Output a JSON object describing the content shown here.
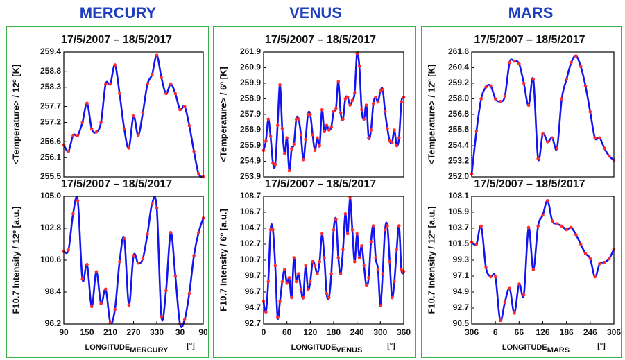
{
  "headers": [
    "MERCURY",
    "VENUS",
    "MARS"
  ],
  "chart_data": [
    {
      "type": "line",
      "title": "17/5/2007 – 18/5/2017",
      "ylabel": "<Temperature> / 12º [K]",
      "color": "#1414f0",
      "marker_color": "#ff2a2a",
      "x": [
        90,
        102,
        114,
        126,
        138,
        150,
        162,
        174,
        186,
        198,
        210,
        222,
        234,
        246,
        258,
        270,
        282,
        294,
        306,
        318,
        330,
        342,
        354,
        366,
        378,
        390,
        402,
        414,
        426,
        438,
        450
      ],
      "values": [
        256.5,
        256.3,
        256.8,
        256.8,
        257.2,
        257.8,
        257.0,
        256.9,
        257.2,
        258.4,
        258.4,
        259.0,
        258.1,
        257.0,
        256.4,
        257.4,
        256.8,
        257.5,
        258.4,
        258.7,
        259.3,
        258.6,
        258.1,
        258.4,
        258.1,
        257.6,
        257.7,
        257.1,
        256.3,
        255.6,
        255.5
      ],
      "xlim": [
        90,
        450
      ],
      "ylim": [
        255.5,
        259.4
      ],
      "yticks": [
        255.5,
        256.1,
        256.6,
        257.2,
        257.7,
        258.3,
        258.8,
        259.4
      ]
    },
    {
      "type": "line",
      "title": "17/5/2007 – 18/5/2017",
      "ylabel": "F10.7 Intensity / 12º [a.u.]",
      "color": "#1414f0",
      "marker_color": "#ff2a2a",
      "x": [
        90,
        102,
        114,
        126,
        138,
        150,
        162,
        174,
        186,
        198,
        210,
        222,
        234,
        246,
        258,
        270,
        282,
        294,
        306,
        318,
        330,
        342,
        354,
        366,
        378,
        390,
        402,
        414,
        426,
        438,
        450
      ],
      "values": [
        101.2,
        101.3,
        103.8,
        104.7,
        99.3,
        100.3,
        97.4,
        99.8,
        97.6,
        98.6,
        96.3,
        97.2,
        100.5,
        102.1,
        97.5,
        100.9,
        100.4,
        100.7,
        102.4,
        104.5,
        104.2,
        96.7,
        98.5,
        102.5,
        99.5,
        96.2,
        96.5,
        98.3,
        100.9,
        102.5,
        103.5
      ],
      "xlim": [
        90,
        450
      ],
      "ylim": [
        96.2,
        105
      ],
      "yticks": [
        96.2,
        98.4,
        100.6,
        102.8,
        {
          "value": 105,
          "label": "105.0"
        }
      ],
      "xticks": [
        90,
        150,
        210,
        270,
        330,
        {
          "value": 390,
          "label": "30"
        },
        {
          "value": 450,
          "label": "90"
        }
      ],
      "xlabel": "LONGITUDE",
      "xlabel_sub": "MERCURY",
      "xunit": "[°]"
    },
    {
      "type": "line",
      "title": "17/5/2007 – 18/5/2017",
      "ylabel": "<Temperature> / 6º [K]",
      "color": "#1414f0",
      "marker_color": "#ff2a2a",
      "x": [
        0,
        6,
        12,
        18,
        24,
        30,
        36,
        42,
        48,
        54,
        60,
        66,
        72,
        78,
        84,
        90,
        96,
        102,
        108,
        114,
        120,
        126,
        132,
        138,
        144,
        150,
        156,
        162,
        168,
        174,
        180,
        186,
        192,
        198,
        204,
        210,
        216,
        222,
        228,
        234,
        240,
        246,
        252,
        258,
        264,
        270,
        276,
        282,
        288,
        294,
        300,
        306,
        312,
        318,
        324,
        330,
        336,
        342,
        348,
        354,
        360
      ],
      "values": [
        255.6,
        256.2,
        257.6,
        256.5,
        254.8,
        254.7,
        257.2,
        259.8,
        257.0,
        255.4,
        256.4,
        254.3,
        255.7,
        256.0,
        257.6,
        257.6,
        256.6,
        255.0,
        256.3,
        257.9,
        257.9,
        256.6,
        255.6,
        256.4,
        255.9,
        258.2,
        256.8,
        257.2,
        256.9,
        257.1,
        258.1,
        258.3,
        260.0,
        258.0,
        257.6,
        258.9,
        259.0,
        258.5,
        258.8,
        259.3,
        261.8,
        261.0,
        258.2,
        257.6,
        258.5,
        256.4,
        256.9,
        258.6,
        259.0,
        258.7,
        259.4,
        259.5,
        258.1,
        257.0,
        256.2,
        256.1,
        256.9,
        255.9,
        256.4,
        258.7,
        259.0
      ],
      "xlim": [
        0,
        360
      ],
      "ylim": [
        253.9,
        261.9
      ],
      "yticks": [
        253.9,
        254.9,
        255.9,
        256.9,
        257.9,
        258.9,
        259.9,
        260.9,
        261.9
      ]
    },
    {
      "type": "line",
      "title": "17/5/2007 – 18/5/2017",
      "ylabel": "F10.7 Intensity / 6º [a.u.]",
      "color": "#1414f0",
      "marker_color": "#ff2a2a",
      "x": [
        0,
        6,
        12,
        18,
        24,
        30,
        36,
        42,
        48,
        54,
        60,
        66,
        72,
        78,
        84,
        90,
        96,
        102,
        108,
        114,
        120,
        126,
        132,
        138,
        144,
        150,
        156,
        162,
        168,
        174,
        180,
        186,
        192,
        198,
        204,
        210,
        216,
        222,
        228,
        234,
        240,
        246,
        252,
        258,
        264,
        270,
        276,
        282,
        288,
        294,
        300,
        306,
        312,
        318,
        324,
        330,
        336,
        342,
        348,
        354,
        360
      ],
      "values": [
        95.5,
        94.2,
        98.0,
        104.5,
        104.5,
        100.0,
        93.5,
        95.5,
        98.0,
        99.5,
        97.8,
        98.5,
        96.0,
        101.0,
        98.0,
        99.0,
        97.0,
        96.0,
        100.0,
        97.0,
        98.0,
        100.5,
        100.0,
        99.0,
        100.5,
        104.0,
        101.0,
        96.5,
        96.0,
        99.0,
        104.5,
        105.8,
        101.0,
        99.0,
        102.0,
        106.5,
        104.0,
        108.5,
        104.5,
        100.5,
        104.0,
        101.0,
        102.5,
        100.0,
        97.5,
        98.5,
        103.0,
        105.0,
        101.0,
        99.5,
        95.0,
        99.0,
        104.5,
        105.0,
        100.5,
        96.0,
        98.0,
        102.0,
        105.0,
        99.5,
        99.3
      ],
      "xlim": [
        0,
        360
      ],
      "ylim": [
        92.7,
        108.7
      ],
      "yticks": [
        92.7,
        94.7,
        96.7,
        98.7,
        100.7,
        102.7,
        104.7,
        106.7,
        108.7
      ],
      "xticks": [
        0,
        60,
        120,
        180,
        240,
        300,
        360
      ],
      "xlabel": "LONGITUDE",
      "xlabel_sub": "VENUS",
      "xunit": "[°]"
    },
    {
      "type": "line",
      "title": "17/5/2007 – 18/5/2017",
      "ylabel": "<Temperature> / 12º [K]",
      "color": "#1414f0",
      "marker_color": "#ff2a2a",
      "x": [
        306,
        318,
        330,
        342,
        354,
        366,
        378,
        390,
        402,
        414,
        426,
        438,
        450,
        462,
        474,
        486,
        498,
        510,
        522,
        534,
        546,
        558,
        570,
        582,
        594,
        606,
        618,
        630,
        642,
        654,
        666
      ],
      "values": [
        252.2,
        255.5,
        258.0,
        258.9,
        259.0,
        258.0,
        257.8,
        258.2,
        260.8,
        260.9,
        260.7,
        259.2,
        257.5,
        259.5,
        253.4,
        255.3,
        254.7,
        255.0,
        254.2,
        258.0,
        259.5,
        260.8,
        261.3,
        260.5,
        259.0,
        257.0,
        255.0,
        255.0,
        254.2,
        253.6,
        253.3
      ],
      "xlim": [
        306,
        666
      ],
      "ylim": [
        252,
        261.6
      ],
      "yticks": [
        {
          "value": 252,
          "label": "252.0"
        },
        253.2,
        254.4,
        255.6,
        256.8,
        {
          "value": 258,
          "label": "258.0"
        },
        259.2,
        260.4,
        261.6
      ]
    },
    {
      "type": "line",
      "title": "17/5/2007 – 18/5/2017",
      "ylabel": "F10.7 Intensity / 12º [a.u.]",
      "color": "#1414f0",
      "marker_color": "#ff2a2a",
      "x": [
        306,
        318,
        330,
        342,
        354,
        366,
        378,
        390,
        402,
        414,
        426,
        438,
        450,
        462,
        474,
        486,
        498,
        510,
        522,
        534,
        546,
        558,
        570,
        582,
        594,
        606,
        618,
        630,
        642,
        654,
        666
      ],
      "values": [
        101.8,
        101.5,
        104.0,
        98.3,
        97.0,
        97.0,
        91.0,
        93.5,
        95.4,
        92.0,
        96.0,
        94.5,
        103.8,
        98.0,
        104.0,
        105.5,
        107.5,
        104.7,
        104.3,
        104.0,
        103.5,
        103.8,
        102.8,
        101.5,
        100.2,
        99.5,
        97.0,
        98.8,
        99.0,
        99.5,
        100.8
      ],
      "xlim": [
        306,
        666
      ],
      "ylim": [
        90.5,
        108.1
      ],
      "yticks": [
        90.5,
        92.7,
        94.9,
        97.1,
        99.3,
        101.5,
        103.7,
        105.9,
        108.1
      ],
      "xticks": [
        306,
        {
          "value": 366,
          "label": "6"
        },
        {
          "value": 426,
          "label": "66"
        },
        {
          "value": 486,
          "label": "126"
        },
        {
          "value": 546,
          "label": "186"
        },
        {
          "value": 606,
          "label": "246"
        },
        {
          "value": 666,
          "label": "306"
        }
      ],
      "xlabel": "LONGITUDE",
      "xlabel_sub": "MARS",
      "xunit": "[°]"
    }
  ]
}
